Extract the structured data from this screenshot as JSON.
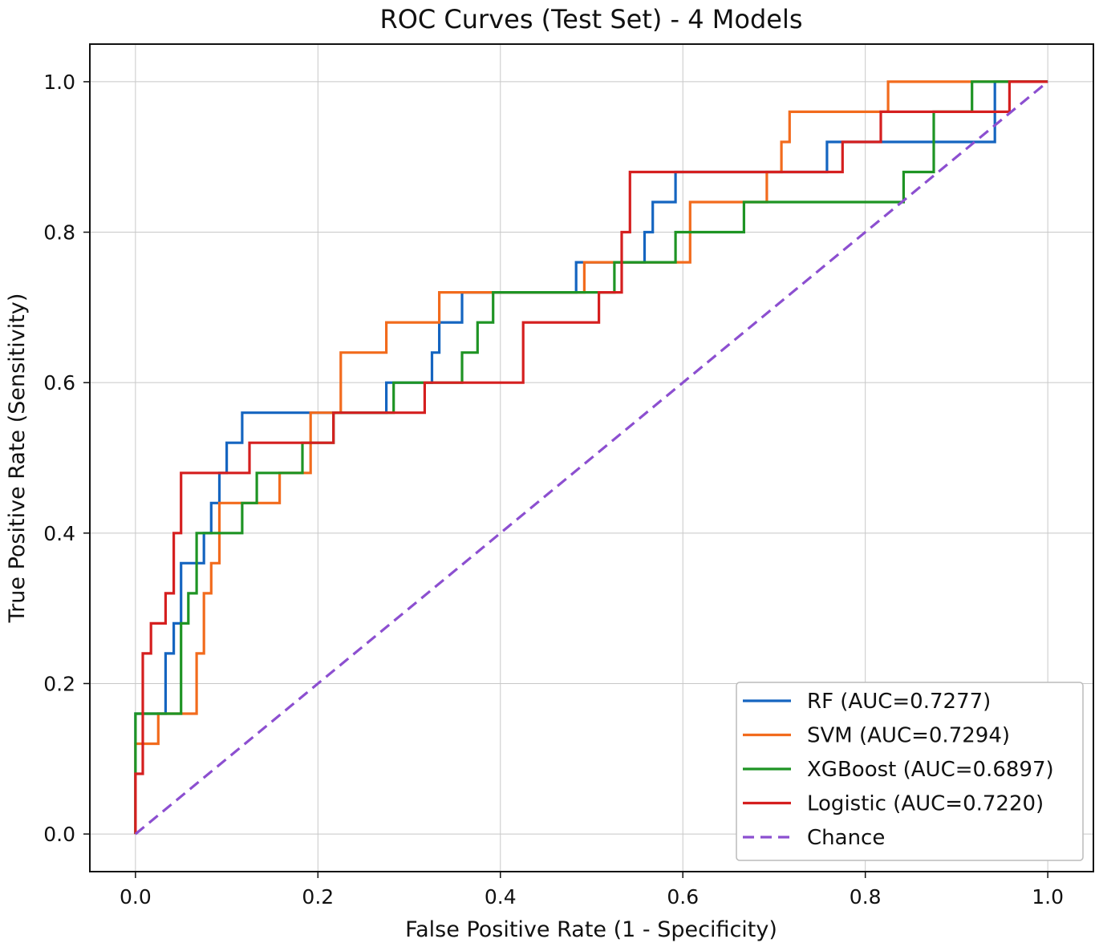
{
  "chart_data": {
    "type": "line",
    "title": "ROC Curves (Test Set) - 4 Models",
    "xlabel": "False Positive Rate (1 - Specificity)",
    "ylabel": "True Positive Rate (Sensitivity)",
    "xlim": [
      -0.05,
      1.05
    ],
    "ylim": [
      -0.05,
      1.05
    ],
    "xticks": [
      0.0,
      0.2,
      0.4,
      0.6,
      0.8,
      1.0
    ],
    "yticks": [
      0.0,
      0.2,
      0.4,
      0.6,
      0.8,
      1.0
    ],
    "xtick_labels": [
      "0.0",
      "0.2",
      "0.4",
      "0.6",
      "0.8",
      "1.0"
    ],
    "ytick_labels": [
      "0.0",
      "0.2",
      "0.4",
      "0.6",
      "0.8",
      "1.0"
    ],
    "grid": true,
    "legend_position": "bottom-right",
    "series": [
      {
        "name": "RF (AUC=0.7277)",
        "color": "#1565C0",
        "style": "solid",
        "points": [
          [
            0,
            0
          ],
          [
            0,
            0.16
          ],
          [
            0.033,
            0.16
          ],
          [
            0.033,
            0.24
          ],
          [
            0.042,
            0.24
          ],
          [
            0.042,
            0.28
          ],
          [
            0.05,
            0.28
          ],
          [
            0.05,
            0.36
          ],
          [
            0.075,
            0.36
          ],
          [
            0.075,
            0.4
          ],
          [
            0.083,
            0.4
          ],
          [
            0.083,
            0.44
          ],
          [
            0.092,
            0.44
          ],
          [
            0.092,
            0.48
          ],
          [
            0.1,
            0.48
          ],
          [
            0.1,
            0.52
          ],
          [
            0.117,
            0.52
          ],
          [
            0.117,
            0.56
          ],
          [
            0.275,
            0.56
          ],
          [
            0.275,
            0.6
          ],
          [
            0.325,
            0.6
          ],
          [
            0.325,
            0.64
          ],
          [
            0.333,
            0.64
          ],
          [
            0.333,
            0.68
          ],
          [
            0.358,
            0.68
          ],
          [
            0.358,
            0.72
          ],
          [
            0.483,
            0.72
          ],
          [
            0.483,
            0.76
          ],
          [
            0.558,
            0.76
          ],
          [
            0.558,
            0.8
          ],
          [
            0.567,
            0.8
          ],
          [
            0.567,
            0.84
          ],
          [
            0.592,
            0.84
          ],
          [
            0.592,
            0.88
          ],
          [
            0.758,
            0.88
          ],
          [
            0.758,
            0.92
          ],
          [
            0.942,
            0.92
          ],
          [
            0.942,
            1.0
          ],
          [
            1.0,
            1.0
          ]
        ]
      },
      {
        "name": "SVM (AUC=0.7294)",
        "color": "#F26B1D",
        "style": "solid",
        "points": [
          [
            0,
            0
          ],
          [
            0,
            0.12
          ],
          [
            0.025,
            0.12
          ],
          [
            0.025,
            0.16
          ],
          [
            0.067,
            0.16
          ],
          [
            0.067,
            0.24
          ],
          [
            0.075,
            0.24
          ],
          [
            0.075,
            0.32
          ],
          [
            0.083,
            0.32
          ],
          [
            0.083,
            0.36
          ],
          [
            0.092,
            0.36
          ],
          [
            0.092,
            0.44
          ],
          [
            0.158,
            0.44
          ],
          [
            0.158,
            0.48
          ],
          [
            0.192,
            0.48
          ],
          [
            0.192,
            0.56
          ],
          [
            0.225,
            0.56
          ],
          [
            0.225,
            0.64
          ],
          [
            0.275,
            0.64
          ],
          [
            0.275,
            0.68
          ],
          [
            0.333,
            0.68
          ],
          [
            0.333,
            0.72
          ],
          [
            0.492,
            0.72
          ],
          [
            0.492,
            0.76
          ],
          [
            0.608,
            0.76
          ],
          [
            0.608,
            0.84
          ],
          [
            0.692,
            0.84
          ],
          [
            0.692,
            0.88
          ],
          [
            0.708,
            0.88
          ],
          [
            0.708,
            0.92
          ],
          [
            0.717,
            0.92
          ],
          [
            0.717,
            0.96
          ],
          [
            0.825,
            0.96
          ],
          [
            0.825,
            1.0
          ],
          [
            1.0,
            1.0
          ]
        ]
      },
      {
        "name": "XGBoost (AUC=0.6897)",
        "color": "#1E9424",
        "style": "solid",
        "points": [
          [
            0,
            0
          ],
          [
            0,
            0.16
          ],
          [
            0.05,
            0.16
          ],
          [
            0.05,
            0.28
          ],
          [
            0.058,
            0.28
          ],
          [
            0.058,
            0.32
          ],
          [
            0.067,
            0.32
          ],
          [
            0.067,
            0.4
          ],
          [
            0.117,
            0.4
          ],
          [
            0.117,
            0.44
          ],
          [
            0.133,
            0.44
          ],
          [
            0.133,
            0.48
          ],
          [
            0.183,
            0.48
          ],
          [
            0.183,
            0.52
          ],
          [
            0.217,
            0.52
          ],
          [
            0.217,
            0.56
          ],
          [
            0.258,
            0.56
          ],
          [
            0.258,
            0.56
          ],
          [
            0.283,
            0.56
          ],
          [
            0.283,
            0.6
          ],
          [
            0.358,
            0.6
          ],
          [
            0.358,
            0.64
          ],
          [
            0.375,
            0.64
          ],
          [
            0.375,
            0.68
          ],
          [
            0.392,
            0.68
          ],
          [
            0.392,
            0.72
          ],
          [
            0.525,
            0.72
          ],
          [
            0.525,
            0.76
          ],
          [
            0.592,
            0.76
          ],
          [
            0.592,
            0.8
          ],
          [
            0.667,
            0.8
          ],
          [
            0.667,
            0.84
          ],
          [
            0.842,
            0.84
          ],
          [
            0.842,
            0.88
          ],
          [
            0.875,
            0.88
          ],
          [
            0.875,
            0.96
          ],
          [
            0.917,
            0.96
          ],
          [
            0.917,
            1.0
          ],
          [
            1.0,
            1.0
          ]
        ]
      },
      {
        "name": "Logistic (AUC=0.7220)",
        "color": "#D51F1F",
        "style": "solid",
        "points": [
          [
            0,
            0
          ],
          [
            0,
            0.08
          ],
          [
            0.008,
            0.08
          ],
          [
            0.008,
            0.24
          ],
          [
            0.017,
            0.24
          ],
          [
            0.017,
            0.28
          ],
          [
            0.033,
            0.28
          ],
          [
            0.033,
            0.32
          ],
          [
            0.042,
            0.32
          ],
          [
            0.042,
            0.4
          ],
          [
            0.05,
            0.4
          ],
          [
            0.05,
            0.48
          ],
          [
            0.125,
            0.48
          ],
          [
            0.125,
            0.52
          ],
          [
            0.217,
            0.52
          ],
          [
            0.217,
            0.56
          ],
          [
            0.317,
            0.56
          ],
          [
            0.317,
            0.6
          ],
          [
            0.425,
            0.6
          ],
          [
            0.425,
            0.68
          ],
          [
            0.508,
            0.68
          ],
          [
            0.508,
            0.72
          ],
          [
            0.533,
            0.72
          ],
          [
            0.533,
            0.8
          ],
          [
            0.542,
            0.8
          ],
          [
            0.542,
            0.88
          ],
          [
            0.775,
            0.88
          ],
          [
            0.775,
            0.92
          ],
          [
            0.817,
            0.92
          ],
          [
            0.817,
            0.96
          ],
          [
            0.958,
            0.96
          ],
          [
            0.958,
            1.0
          ],
          [
            1.0,
            1.0
          ]
        ]
      },
      {
        "name": "Chance",
        "color": "#8C4FD0",
        "style": "dashed",
        "points": [
          [
            0,
            0
          ],
          [
            1,
            1
          ]
        ]
      }
    ]
  }
}
